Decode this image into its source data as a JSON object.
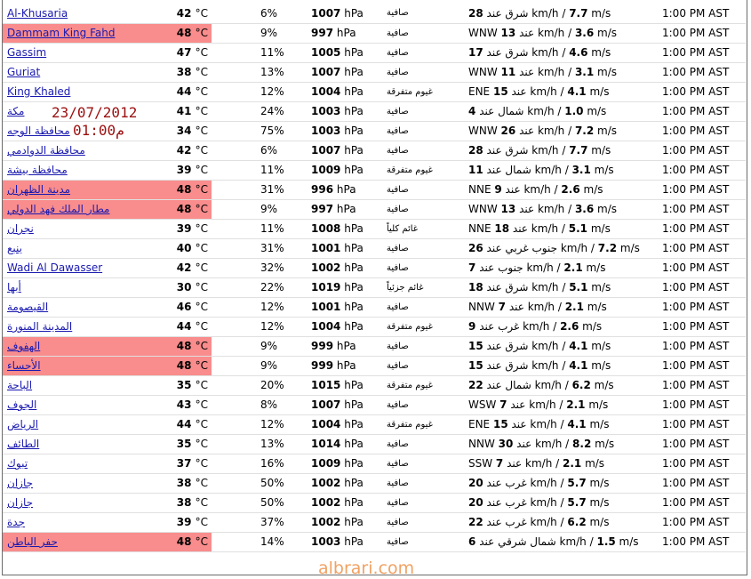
{
  "overlay": {
    "date": "23/07/2012",
    "time": "01:00م"
  },
  "watermark": "albrari.com",
  "rows": [
    {
      "city": "Al-Khusaria",
      "hot": false,
      "temp": "42",
      "unit": "°C",
      "humidity": "6%",
      "pressure": "1007",
      "pressure_unit": "hPa",
      "condition": "صافية",
      "wind_pre": "",
      "wind_speed": "28",
      "wind_post": " شرق عند km/h / ",
      "wind_ms": "7.7",
      "wind_ms_unit": " m/s",
      "time": "1:00 PM AST"
    },
    {
      "city": "Dammam King Fahd",
      "hot": true,
      "temp": "48",
      "unit": "°C",
      "humidity": "9%",
      "pressure": "997",
      "pressure_unit": "hPa",
      "condition": "صافية",
      "wind_pre": "WNW ",
      "wind_speed": "13",
      "wind_post": " عند km/h / ",
      "wind_ms": "3.6",
      "wind_ms_unit": " m/s",
      "time": "1:00 PM AST"
    },
    {
      "city": "Gassim",
      "hot": false,
      "temp": "47",
      "unit": "°C",
      "humidity": "11%",
      "pressure": "1005",
      "pressure_unit": "hPa",
      "condition": "صافية",
      "wind_pre": "",
      "wind_speed": "17",
      "wind_post": " شرق عند km/h / ",
      "wind_ms": "4.6",
      "wind_ms_unit": " m/s",
      "time": "1:00 PM AST"
    },
    {
      "city": "Guriat",
      "hot": false,
      "temp": "38",
      "unit": "°C",
      "humidity": "13%",
      "pressure": "1007",
      "pressure_unit": "hPa",
      "condition": "صافية",
      "wind_pre": "WNW ",
      "wind_speed": "11",
      "wind_post": " عند km/h / ",
      "wind_ms": "3.1",
      "wind_ms_unit": " m/s",
      "time": "1:00 PM AST"
    },
    {
      "city": "King Khaled",
      "hot": false,
      "temp": "44",
      "unit": "°C",
      "humidity": "12%",
      "pressure": "1004",
      "pressure_unit": "hPa",
      "condition": "غيوم متفرقة",
      "wind_pre": "ENE ",
      "wind_speed": "15",
      "wind_post": " عند km/h / ",
      "wind_ms": "4.1",
      "wind_ms_unit": " m/s",
      "time": "1:00 PM AST"
    },
    {
      "city": "مكة",
      "hot": false,
      "temp": "41",
      "unit": "°C",
      "humidity": "24%",
      "pressure": "1003",
      "pressure_unit": "hPa",
      "condition": "صافية",
      "wind_pre": "",
      "wind_speed": "4",
      "wind_post": " شمال عند km/h / ",
      "wind_ms": "1.0",
      "wind_ms_unit": " m/s",
      "time": "1:00 PM AST"
    },
    {
      "city": "محافظة الوجه",
      "hot": false,
      "temp": "34",
      "unit": "°C",
      "humidity": "75%",
      "pressure": "1003",
      "pressure_unit": "hPa",
      "condition": "صافية",
      "wind_pre": "WNW ",
      "wind_speed": "26",
      "wind_post": " عند km/h / ",
      "wind_ms": "7.2",
      "wind_ms_unit": " m/s",
      "time": "1:00 PM AST"
    },
    {
      "city": "محافظة الدوادمي",
      "hot": false,
      "temp": "42",
      "unit": "°C",
      "humidity": "6%",
      "pressure": "1007",
      "pressure_unit": "hPa",
      "condition": "صافية",
      "wind_pre": "",
      "wind_speed": "28",
      "wind_post": " شرق عند km/h / ",
      "wind_ms": "7.7",
      "wind_ms_unit": " m/s",
      "time": "1:00 PM AST"
    },
    {
      "city": "محافظة بيشة",
      "hot": false,
      "temp": "39",
      "unit": "°C",
      "humidity": "11%",
      "pressure": "1009",
      "pressure_unit": "hPa",
      "condition": "غيوم متفرقة",
      "wind_pre": "",
      "wind_speed": "11",
      "wind_post": " شمال عند km/h / ",
      "wind_ms": "3.1",
      "wind_ms_unit": " m/s",
      "time": "1:00 PM AST"
    },
    {
      "city": "مدينة الظهران",
      "hot": true,
      "temp": "48",
      "unit": "°C",
      "humidity": "31%",
      "pressure": "996",
      "pressure_unit": "hPa",
      "condition": "صافية",
      "wind_pre": "NNE ",
      "wind_speed": "9",
      "wind_post": " عند km/h / ",
      "wind_ms": "2.6",
      "wind_ms_unit": " m/s",
      "time": "1:00 PM AST"
    },
    {
      "city": "مطار الملك فهد الدولي",
      "hot": true,
      "temp": "48",
      "unit": "°C",
      "humidity": "9%",
      "pressure": "997",
      "pressure_unit": "hPa",
      "condition": "صافية",
      "wind_pre": "WNW ",
      "wind_speed": "13",
      "wind_post": " عند km/h / ",
      "wind_ms": "3.6",
      "wind_ms_unit": " m/s",
      "time": "1:00 PM AST"
    },
    {
      "city": "نجران",
      "hot": false,
      "temp": "39",
      "unit": "°C",
      "humidity": "11%",
      "pressure": "1008",
      "pressure_unit": "hPa",
      "condition": "غائم كلياً",
      "wind_pre": "NNE ",
      "wind_speed": "18",
      "wind_post": " عند km/h / ",
      "wind_ms": "5.1",
      "wind_ms_unit": " m/s",
      "time": "1:00 PM AST"
    },
    {
      "city": "ينبع",
      "hot": false,
      "temp": "40",
      "unit": "°C",
      "humidity": "31%",
      "pressure": "1001",
      "pressure_unit": "hPa",
      "condition": "صافية",
      "wind_pre": "",
      "wind_speed": "26",
      "wind_post": " جنوب غربي عند km/h / ",
      "wind_ms": "7.2",
      "wind_ms_unit": " m/s",
      "time": "1:00 PM AST"
    },
    {
      "city": "Wadi Al Dawasser",
      "hot": false,
      "temp": "42",
      "unit": "°C",
      "humidity": "32%",
      "pressure": "1002",
      "pressure_unit": "hPa",
      "condition": "صافية",
      "wind_pre": "",
      "wind_speed": "7",
      "wind_post": " جنوب عند km/h / ",
      "wind_ms": "2.1",
      "wind_ms_unit": " m/s",
      "time": "1:00 PM AST"
    },
    {
      "city": "أبها",
      "hot": false,
      "temp": "30",
      "unit": "°C",
      "humidity": "22%",
      "pressure": "1019",
      "pressure_unit": "hPa",
      "condition": "غائم جزئياً",
      "wind_pre": "",
      "wind_speed": "18",
      "wind_post": " شرق عند km/h / ",
      "wind_ms": "5.1",
      "wind_ms_unit": " m/s",
      "time": "1:00 PM AST"
    },
    {
      "city": "القيصومة",
      "hot": false,
      "temp": "46",
      "unit": "°C",
      "humidity": "12%",
      "pressure": "1001",
      "pressure_unit": "hPa",
      "condition": "صافية",
      "wind_pre": "NNW ",
      "wind_speed": "7",
      "wind_post": " عند km/h / ",
      "wind_ms": "2.1",
      "wind_ms_unit": " m/s",
      "time": "1:00 PM AST"
    },
    {
      "city": "المدينة المنورة",
      "hot": false,
      "temp": "44",
      "unit": "°C",
      "humidity": "12%",
      "pressure": "1004",
      "pressure_unit": "hPa",
      "condition": "غيوم متفرقة",
      "wind_pre": "",
      "wind_speed": "9",
      "wind_post": " غرب عند km/h / ",
      "wind_ms": "2.6",
      "wind_ms_unit": " m/s",
      "time": "1:00 PM AST"
    },
    {
      "city": "الهفوف",
      "hot": true,
      "temp": "48",
      "unit": "°C",
      "humidity": "9%",
      "pressure": "999",
      "pressure_unit": "hPa",
      "condition": "صافية",
      "wind_pre": "",
      "wind_speed": "15",
      "wind_post": " شرق عند km/h / ",
      "wind_ms": "4.1",
      "wind_ms_unit": " m/s",
      "time": "1:00 PM AST"
    },
    {
      "city": "الأحساء",
      "hot": true,
      "temp": "48",
      "unit": "°C",
      "humidity": "9%",
      "pressure": "999",
      "pressure_unit": "hPa",
      "condition": "صافية",
      "wind_pre": "",
      "wind_speed": "15",
      "wind_post": " شرق عند km/h / ",
      "wind_ms": "4.1",
      "wind_ms_unit": " m/s",
      "time": "1:00 PM AST"
    },
    {
      "city": "الباحة",
      "hot": false,
      "temp": "35",
      "unit": "°C",
      "humidity": "20%",
      "pressure": "1015",
      "pressure_unit": "hPa",
      "condition": "غيوم متفرقة",
      "wind_pre": "",
      "wind_speed": "22",
      "wind_post": " شمال عند km/h / ",
      "wind_ms": "6.2",
      "wind_ms_unit": " m/s",
      "time": "1:00 PM AST"
    },
    {
      "city": "الجوف",
      "hot": false,
      "temp": "43",
      "unit": "°C",
      "humidity": "8%",
      "pressure": "1007",
      "pressure_unit": "hPa",
      "condition": "صافية",
      "wind_pre": "WSW ",
      "wind_speed": "7",
      "wind_post": " عند km/h / ",
      "wind_ms": "2.1",
      "wind_ms_unit": " m/s",
      "time": "1:00 PM AST"
    },
    {
      "city": "الرياض",
      "hot": false,
      "temp": "44",
      "unit": "°C",
      "humidity": "12%",
      "pressure": "1004",
      "pressure_unit": "hPa",
      "condition": "غيوم متفرقة",
      "wind_pre": "ENE ",
      "wind_speed": "15",
      "wind_post": " عند km/h / ",
      "wind_ms": "4.1",
      "wind_ms_unit": " m/s",
      "time": "1:00 PM AST"
    },
    {
      "city": "الطائف",
      "hot": false,
      "temp": "35",
      "unit": "°C",
      "humidity": "13%",
      "pressure": "1014",
      "pressure_unit": "hPa",
      "condition": "صافية",
      "wind_pre": "NNW ",
      "wind_speed": "30",
      "wind_post": " عند km/h / ",
      "wind_ms": "8.2",
      "wind_ms_unit": " m/s",
      "time": "1:00 PM AST"
    },
    {
      "city": "تبوك",
      "hot": false,
      "temp": "37",
      "unit": "°C",
      "humidity": "16%",
      "pressure": "1009",
      "pressure_unit": "hPa",
      "condition": "صافية",
      "wind_pre": "SSW ",
      "wind_speed": "7",
      "wind_post": " عند km/h / ",
      "wind_ms": "2.1",
      "wind_ms_unit": " m/s",
      "time": "1:00 PM AST"
    },
    {
      "city": "جازان",
      "hot": false,
      "temp": "38",
      "unit": "°C",
      "humidity": "50%",
      "pressure": "1002",
      "pressure_unit": "hPa",
      "condition": "صافية",
      "wind_pre": "",
      "wind_speed": "20",
      "wind_post": " غرب عند km/h / ",
      "wind_ms": "5.7",
      "wind_ms_unit": " m/s",
      "time": "1:00 PM AST"
    },
    {
      "city": "جازان",
      "hot": false,
      "temp": "38",
      "unit": "°C",
      "humidity": "50%",
      "pressure": "1002",
      "pressure_unit": "hPa",
      "condition": "صافية",
      "wind_pre": "",
      "wind_speed": "20",
      "wind_post": " غرب عند km/h / ",
      "wind_ms": "5.7",
      "wind_ms_unit": " m/s",
      "time": "1:00 PM AST"
    },
    {
      "city": "جدة",
      "hot": false,
      "temp": "39",
      "unit": "°C",
      "humidity": "37%",
      "pressure": "1002",
      "pressure_unit": "hPa",
      "condition": "صافية",
      "wind_pre": "",
      "wind_speed": "22",
      "wind_post": " غرب عند km/h / ",
      "wind_ms": "6.2",
      "wind_ms_unit": " m/s",
      "time": "1:00 PM AST"
    },
    {
      "city": "حفر الباطن",
      "hot": true,
      "temp": "48",
      "unit": "°C",
      "humidity": "14%",
      "pressure": "1003",
      "pressure_unit": "hPa",
      "condition": "صافية",
      "wind_pre": "",
      "wind_speed": "6",
      "wind_post": " شمال شرقي عند km/h / ",
      "wind_ms": "1.5",
      "wind_ms_unit": " m/s",
      "time": "1:00 PM AST"
    }
  ]
}
